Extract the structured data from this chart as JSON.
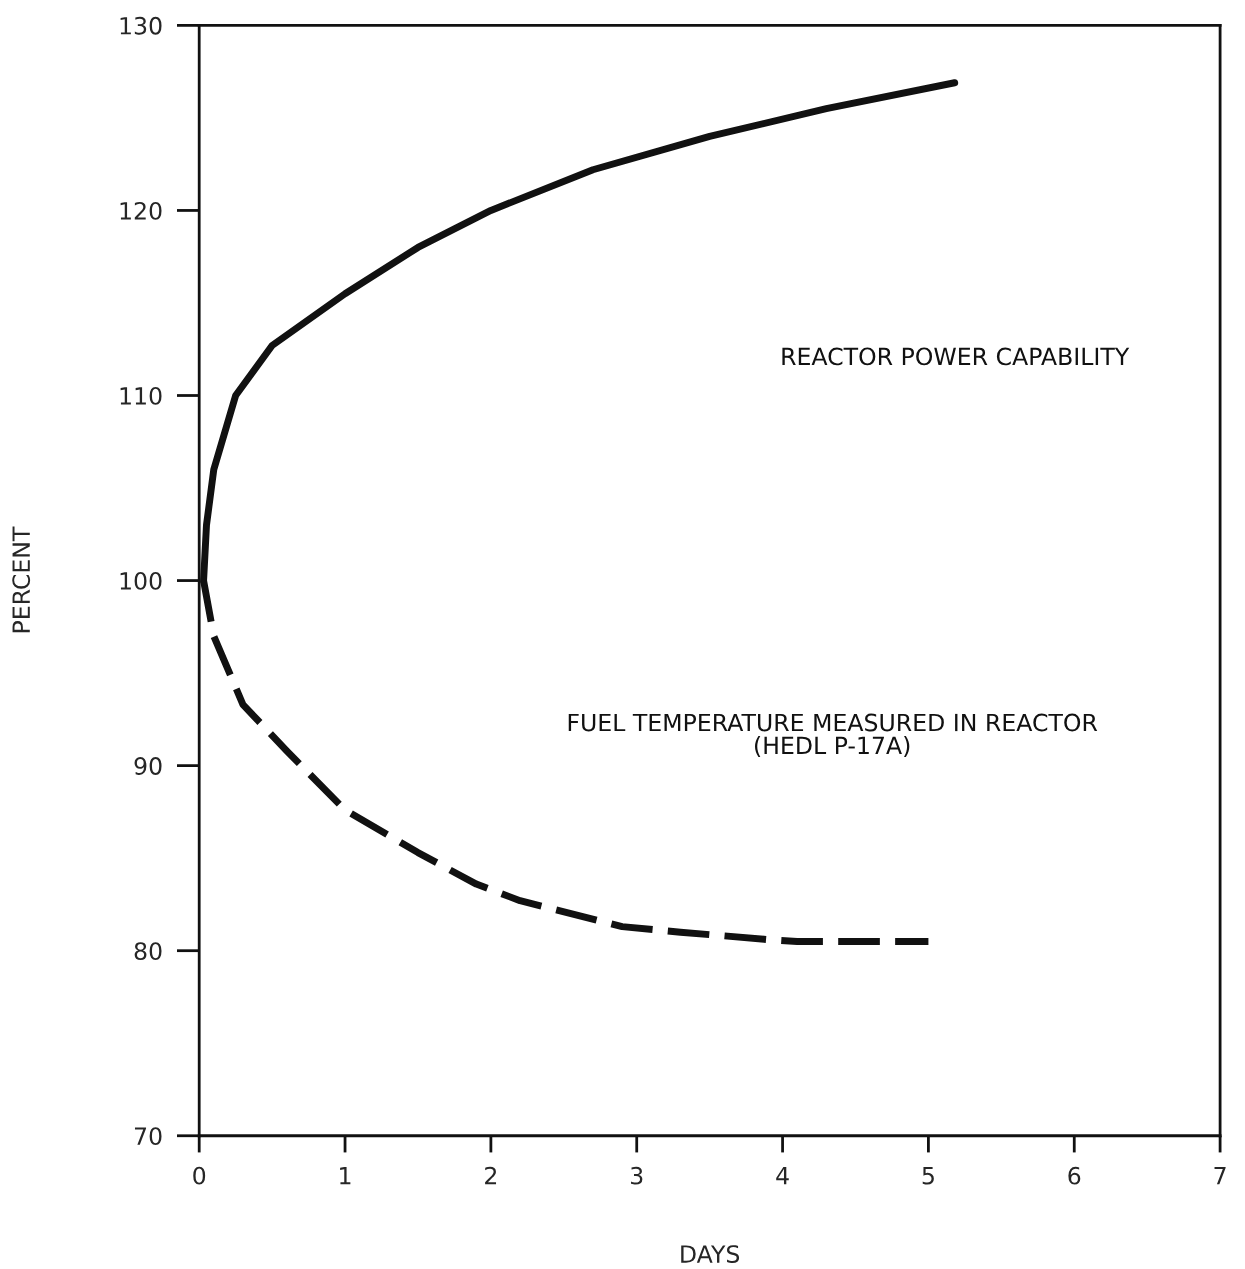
{
  "chart_data": {
    "type": "line",
    "xlabel": "DAYS",
    "ylabel": "PERCENT",
    "xlim": [
      0,
      7
    ],
    "ylim": [
      70,
      130
    ],
    "xticks": [
      0,
      1,
      2,
      3,
      4,
      5,
      6,
      7
    ],
    "yticks": [
      70,
      80,
      90,
      100,
      110,
      120,
      130
    ],
    "grid": false,
    "legend": false,
    "annotations": [
      "REACTOR POWER CAPABILITY",
      "FUEL TEMPERATURE MEASURED IN REACTOR\n(HEDL P-17A)"
    ],
    "series": [
      {
        "color": "#111111",
        "line_style": "solid",
        "x": [
          0.03,
          0.05,
          0.1,
          0.25,
          0.5,
          1,
          1.5,
          2,
          2.7,
          3.5,
          4.3,
          5.18
        ],
        "values": [
          100,
          103,
          106,
          110,
          112.7,
          115.5,
          118,
          120,
          122.2,
          124,
          125.5,
          126.9
        ]
      },
      {
        "color": "#111111",
        "line_style": "dashed",
        "x": [
          0.03,
          0.1,
          0.3,
          0.6,
          1,
          1.5,
          1.9,
          2.2,
          2.9,
          3.3,
          3.9,
          4.1,
          5
        ],
        "values": [
          100,
          97,
          93.3,
          90.8,
          87.6,
          85.3,
          83.6,
          82.7,
          81.3,
          81,
          80.6,
          80.5,
          80.5
        ]
      }
    ]
  }
}
